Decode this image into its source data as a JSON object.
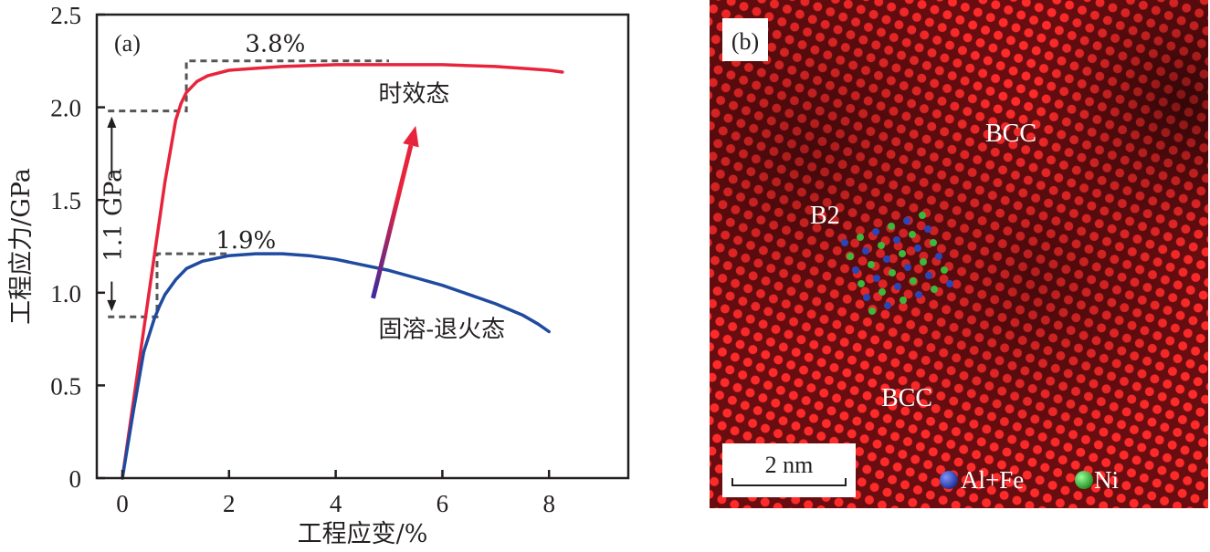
{
  "chart_data": [
    {
      "type": "line",
      "panel_label": "(a)",
      "xlabel": "工程应变/%",
      "ylabel": "工程应力/GPa",
      "xlim": [
        -0.5,
        9.5
      ],
      "ylim": [
        0,
        2.5
      ],
      "xticks": [
        0,
        2,
        4,
        6,
        8
      ],
      "xtick_labels": [
        "0",
        "2",
        "4",
        "6",
        "8"
      ],
      "yticks": [
        0,
        0.5,
        1.0,
        1.5,
        2.0,
        2.5
      ],
      "ytick_labels": [
        "0",
        "0.5",
        "1.0",
        "1.5",
        "2.0",
        "2.5"
      ],
      "grid": false,
      "series": [
        {
          "name": "时效态",
          "color": "#e8243c",
          "x": [
            0,
            0.2,
            0.4,
            0.6,
            0.8,
            1.0,
            1.1,
            1.2,
            1.4,
            1.6,
            2.0,
            2.5,
            3.0,
            4.0,
            5.0,
            6.0,
            7.0,
            7.5,
            8.0,
            8.25
          ],
          "y": [
            0,
            0.4,
            0.8,
            1.2,
            1.6,
            1.93,
            2.02,
            2.08,
            2.14,
            2.17,
            2.2,
            2.21,
            2.22,
            2.23,
            2.23,
            2.23,
            2.22,
            2.21,
            2.2,
            2.19
          ]
        },
        {
          "name": "固溶-退火态",
          "color": "#1f4aa0",
          "x": [
            0,
            0.2,
            0.4,
            0.6,
            0.7,
            0.8,
            1.0,
            1.2,
            1.5,
            2.0,
            2.5,
            3.0,
            3.5,
            4.0,
            4.5,
            5.0,
            5.5,
            6.0,
            6.5,
            7.0,
            7.5,
            7.8,
            8.0
          ],
          "y": [
            0,
            0.35,
            0.68,
            0.86,
            0.93,
            0.99,
            1.07,
            1.13,
            1.17,
            1.2,
            1.21,
            1.21,
            1.2,
            1.18,
            1.15,
            1.12,
            1.08,
            1.04,
            0.99,
            0.94,
            0.88,
            0.83,
            0.79
          ]
        }
      ],
      "annotations": [
        {
          "text": "3.8%",
          "x": 2.3,
          "y": 2.3
        },
        {
          "text": "1.9%",
          "x": 1.75,
          "y": 1.24
        },
        {
          "text": "1.1 GPa",
          "x": -0.2,
          "y": 1.42,
          "rotation": -90
        },
        {
          "text": "时效态",
          "x": 4.8,
          "y": 2.03
        },
        {
          "text": "固溶-退火态",
          "x": 4.8,
          "y": 0.76
        }
      ],
      "guides": {
        "aged_yield": 1.98,
        "aged_uts": 2.25,
        "annealed_yield": 0.87,
        "annealed_uts": 1.21,
        "aged_step_x": 1.2,
        "annealed_step_x": 0.65,
        "aged_top_end_x": 5.0,
        "annealed_top_end_x": 2.0
      },
      "arrow": {
        "from": [
          4.7,
          0.97
        ],
        "to": [
          5.5,
          1.9
        ],
        "color_from": "#3a2aa0",
        "color_to": "#e8243c"
      }
    },
    {
      "type": "image",
      "panel_label": "(b)",
      "labels": [
        "BCC",
        "B2",
        "BCC"
      ],
      "scale_bar": "2 nm",
      "legend": [
        {
          "label": "Al+Fe",
          "color": "#2a45b8"
        },
        {
          "label": "Ni",
          "color": "#3cb83c"
        }
      ],
      "colors": {
        "background": "#d71920",
        "dark": "#4a0a0c",
        "atom": "#ff2a2a"
      }
    }
  ]
}
